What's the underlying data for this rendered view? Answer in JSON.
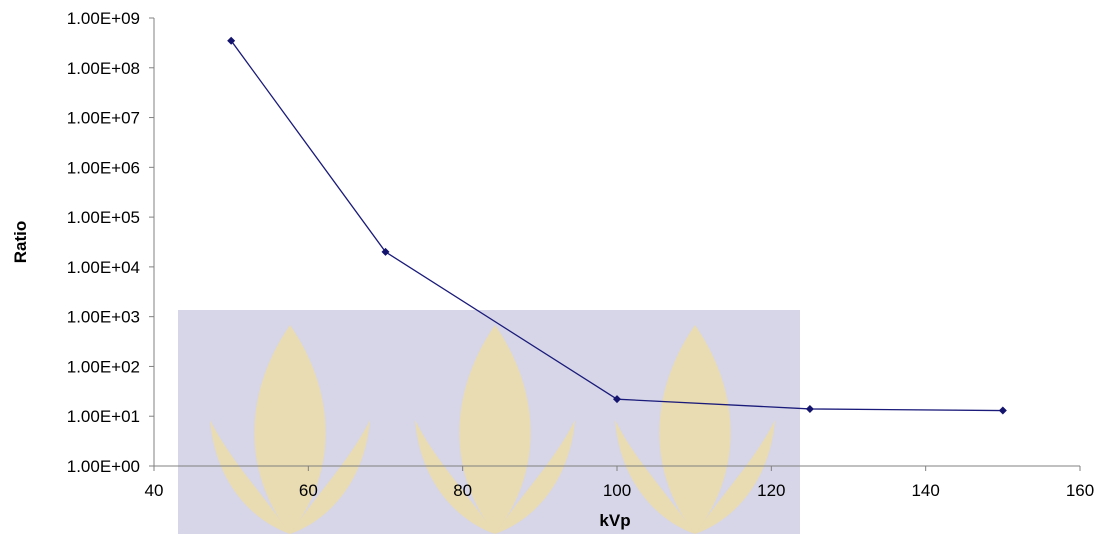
{
  "chart_data": {
    "type": "line",
    "xlabel": "kVp",
    "ylabel": "Ratio",
    "xlim": [
      40,
      160
    ],
    "xticks": [
      "40",
      "60",
      "80",
      "100",
      "120",
      "140",
      "160"
    ],
    "ylim": [
      1,
      1000000000
    ],
    "yscale": "log",
    "yticks": [
      "1.00E+00",
      "1.00E+01",
      "1.00E+02",
      "1.00E+03",
      "1.00E+04",
      "1.00E+05",
      "1.00E+06",
      "1.00E+07",
      "1.00E+08",
      "1.00E+09"
    ],
    "grid": false,
    "series": [
      {
        "x": [
          50,
          70,
          100,
          125,
          150
        ],
        "values": [
          350000000,
          20000,
          22,
          14,
          13
        ],
        "color": "#1a1a7a"
      }
    ]
  },
  "watermark": {
    "color": "#d6d6e8",
    "icon": "leaf-emblem-watermark"
  }
}
